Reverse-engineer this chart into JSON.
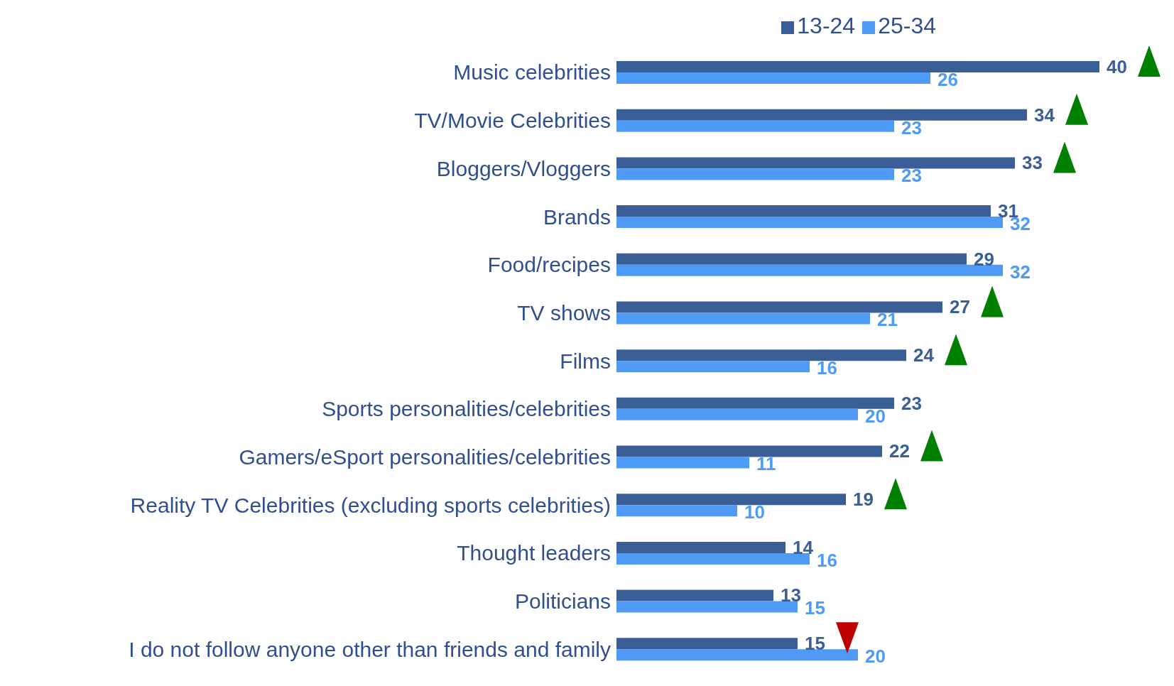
{
  "chart_data": {
    "type": "bar",
    "orientation": "horizontal",
    "categories": [
      "Music celebrities",
      "TV/Movie Celebrities",
      "Bloggers/Vloggers",
      "Brands",
      "Food/recipes",
      "TV shows",
      "Films",
      "Sports personalities/celebrities",
      "Gamers/eSport personalities/celebrities",
      "Reality TV Celebrities (excluding sports celebrities)",
      "Thought leaders",
      "Politicians",
      "I do not follow anyone other than friends and family"
    ],
    "series": [
      {
        "name": "13-24",
        "color": "#3a5f97",
        "values": [
          40,
          34,
          33,
          31,
          29,
          27,
          24,
          23,
          22,
          19,
          14,
          13,
          15
        ]
      },
      {
        "name": "25-34",
        "color": "#4f9af5",
        "values": [
          26,
          23,
          23,
          32,
          32,
          21,
          16,
          20,
          11,
          10,
          16,
          15,
          20
        ]
      }
    ],
    "data_labels": true,
    "legend": "top right"
  }
}
